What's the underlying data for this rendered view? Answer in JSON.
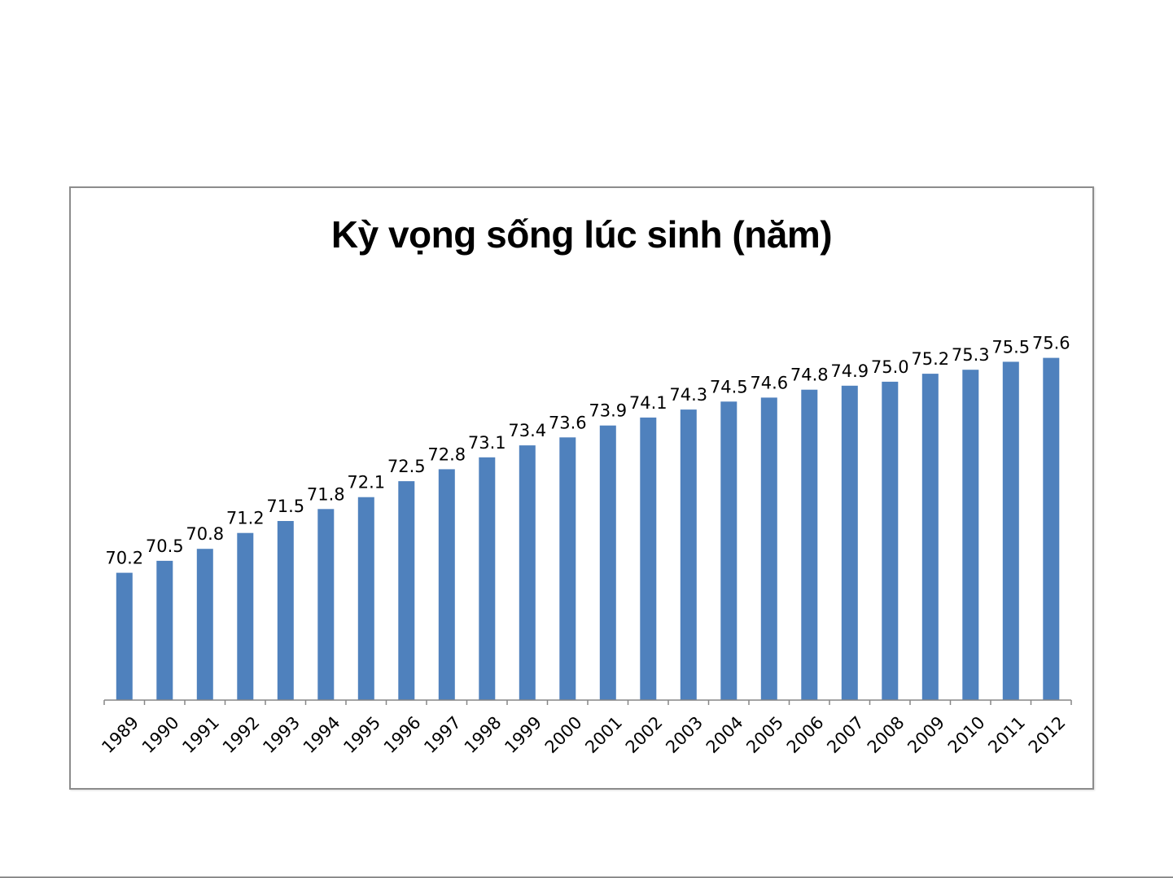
{
  "chart_data": {
    "type": "bar",
    "title": "Kỳ vọng sống lúc sinh (năm)",
    "xlabel": "",
    "ylabel": "",
    "categories": [
      "1989",
      "1990",
      "1991",
      "1992",
      "1993",
      "1994",
      "1995",
      "1996",
      "1997",
      "1998",
      "1999",
      "2000",
      "2001",
      "2002",
      "2003",
      "2004",
      "2005",
      "2006",
      "2007",
      "2008",
      "2009",
      "2010",
      "2011",
      "2012"
    ],
    "values": [
      70.2,
      70.5,
      70.8,
      71.2,
      71.5,
      71.8,
      72.1,
      72.5,
      72.8,
      73.1,
      73.4,
      73.6,
      73.9,
      74.1,
      74.3,
      74.5,
      74.6,
      74.8,
      74.9,
      75.0,
      75.2,
      75.3,
      75.5,
      75.6
    ],
    "value_labels": [
      "70.2",
      "70.5",
      "70.8",
      "71.2",
      "71.5",
      "71.8",
      "72.1",
      "72.5",
      "72.8",
      "73.1",
      "73.4",
      "73.6",
      "73.9",
      "74.1",
      "74.3",
      "74.5",
      "74.6",
      "74.8",
      "74.9",
      "75.0",
      "75.2",
      "75.3",
      "75.5",
      "75.6"
    ],
    "ylim": [
      67.0,
      76.0
    ],
    "grid": false,
    "legend": "none",
    "bar_color": "#4f81bd",
    "axis_color": "#868686"
  }
}
